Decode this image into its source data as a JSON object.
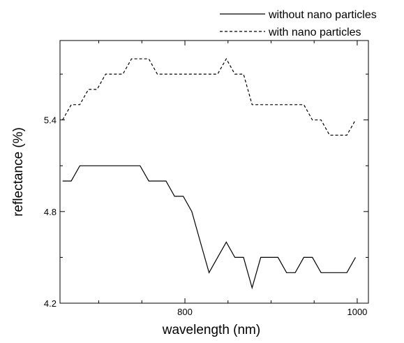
{
  "chart_data": {
    "type": "line",
    "xlabel": "wavelength (nm)",
    "ylabel": "reflectance (%)",
    "xlim": [
      655,
      1013
    ],
    "ylim": [
      4.2,
      5.92
    ],
    "x_ticks": [
      {
        "value": 800,
        "label": "800"
      },
      {
        "value": 1000,
        "label": "1000"
      }
    ],
    "y_ticks": [
      {
        "value": 4.2,
        "label": "4.2"
      },
      {
        "value": 4.8,
        "label": "4.8"
      },
      {
        "value": 5.4,
        "label": "5.4"
      }
    ],
    "legend_position": "top-right",
    "grid": false,
    "series": [
      {
        "name": "without nano particles",
        "style": "solid",
        "color": "#000000",
        "x": [
          658,
          668,
          678,
          688,
          698,
          708,
          718,
          728,
          738,
          748,
          758,
          768,
          778,
          788,
          798,
          808,
          818,
          828,
          838,
          848,
          858,
          868,
          878,
          888,
          898,
          908,
          918,
          928,
          938,
          948,
          958,
          968,
          978,
          988,
          998
        ],
        "y": [
          5.0,
          5.0,
          5.1,
          5.1,
          5.1,
          5.1,
          5.1,
          5.1,
          5.1,
          5.1,
          5.0,
          5.0,
          5.0,
          4.9,
          4.9,
          4.8,
          4.6,
          4.4,
          4.5,
          4.6,
          4.5,
          4.5,
          4.3,
          4.5,
          4.5,
          4.5,
          4.4,
          4.4,
          4.5,
          4.5,
          4.4,
          4.4,
          4.4,
          4.4,
          4.5
        ]
      },
      {
        "name": "with nano particles",
        "style": "dashed",
        "color": "#000000",
        "x": [
          658,
          668,
          678,
          688,
          698,
          708,
          718,
          728,
          738,
          748,
          758,
          768,
          778,
          788,
          798,
          808,
          818,
          828,
          838,
          848,
          858,
          868,
          878,
          888,
          898,
          908,
          918,
          928,
          938,
          948,
          958,
          968,
          978,
          988,
          998
        ],
        "y": [
          5.4,
          5.5,
          5.5,
          5.6,
          5.6,
          5.7,
          5.7,
          5.7,
          5.8,
          5.8,
          5.8,
          5.7,
          5.7,
          5.7,
          5.7,
          5.7,
          5.7,
          5.7,
          5.7,
          5.8,
          5.7,
          5.7,
          5.5,
          5.5,
          5.5,
          5.5,
          5.5,
          5.5,
          5.5,
          5.4,
          5.4,
          5.3,
          5.3,
          5.3,
          5.4
        ]
      }
    ]
  }
}
